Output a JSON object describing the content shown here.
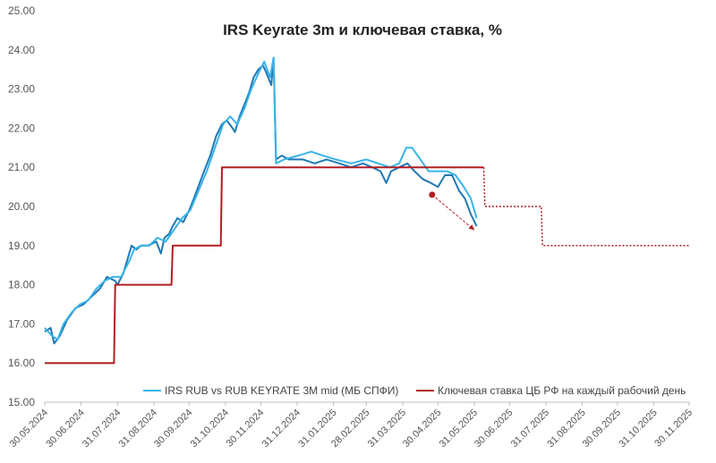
{
  "chart_data": {
    "type": "line",
    "title": "IRS Keyrate 3m и ключевая ставка, %",
    "xlabel": "",
    "ylabel": "",
    "ylim": [
      15.0,
      25.0
    ],
    "yticks": [
      "15.00",
      "16.00",
      "17.00",
      "18.00",
      "19.00",
      "20.00",
      "21.00",
      "22.00",
      "23.00",
      "24.00",
      "25.00"
    ],
    "xticks": [
      "30.05.2024",
      "30.06.2024",
      "31.07.2024",
      "31.08.2024",
      "30.09.2024",
      "31.10.2024",
      "30.11.2024",
      "31.12.2024",
      "31.01.2025",
      "28.02.2025",
      "31.03.2025",
      "30.04.2025",
      "31.05.2025",
      "30.06.2025",
      "31.07.2025",
      "31.08.2025",
      "30.09.2025",
      "31.10.2025",
      "30.11.2025"
    ],
    "xrange": [
      "2024-05-30",
      "2025-11-30"
    ],
    "grid": false,
    "legend_position": "bottom",
    "series": [
      {
        "name": "IRS RUB vs RUB KEYRATE 3M mid (МБ СПФИ)",
        "color": "#1f78b4",
        "points": [
          [
            "2024-05-30",
            16.8
          ],
          [
            "2024-06-04",
            16.9
          ],
          [
            "2024-06-07",
            16.5
          ],
          [
            "2024-06-12",
            16.7
          ],
          [
            "2024-06-18",
            17.1
          ],
          [
            "2024-06-25",
            17.4
          ],
          [
            "2024-07-02",
            17.5
          ],
          [
            "2024-07-09",
            17.7
          ],
          [
            "2024-07-16",
            17.9
          ],
          [
            "2024-07-22",
            18.2
          ],
          [
            "2024-07-29",
            18.1
          ],
          [
            "2024-07-31",
            18.0
          ],
          [
            "2024-08-05",
            18.3
          ],
          [
            "2024-08-09",
            18.7
          ],
          [
            "2024-08-12",
            19.0
          ],
          [
            "2024-08-16",
            18.9
          ],
          [
            "2024-08-20",
            19.0
          ],
          [
            "2024-08-26",
            19.0
          ],
          [
            "2024-09-02",
            19.1
          ],
          [
            "2024-09-06",
            18.8
          ],
          [
            "2024-09-09",
            19.2
          ],
          [
            "2024-09-13",
            19.3
          ],
          [
            "2024-09-16",
            19.5
          ],
          [
            "2024-09-20",
            19.7
          ],
          [
            "2024-09-25",
            19.6
          ],
          [
            "2024-09-30",
            19.9
          ],
          [
            "2024-10-04",
            20.2
          ],
          [
            "2024-10-09",
            20.6
          ],
          [
            "2024-10-14",
            21.0
          ],
          [
            "2024-10-18",
            21.3
          ],
          [
            "2024-10-23",
            21.8
          ],
          [
            "2024-10-28",
            22.1
          ],
          [
            "2024-11-01",
            22.2
          ],
          [
            "2024-11-06",
            22.0
          ],
          [
            "2024-11-08",
            21.9
          ],
          [
            "2024-11-12",
            22.3
          ],
          [
            "2024-11-16",
            22.6
          ],
          [
            "2024-11-20",
            22.9
          ],
          [
            "2024-11-24",
            23.3
          ],
          [
            "2024-11-28",
            23.5
          ],
          [
            "2024-12-02",
            23.6
          ],
          [
            "2024-12-05",
            23.4
          ],
          [
            "2024-12-09",
            23.1
          ],
          [
            "2024-12-11",
            23.8
          ],
          [
            "2024-12-13",
            21.2
          ],
          [
            "2024-12-18",
            21.3
          ],
          [
            "2024-12-24",
            21.2
          ],
          [
            "2025-01-05",
            21.2
          ],
          [
            "2025-01-15",
            21.1
          ],
          [
            "2025-01-25",
            21.2
          ],
          [
            "2025-02-05",
            21.1
          ],
          [
            "2025-02-15",
            21.0
          ],
          [
            "2025-02-25",
            21.1
          ],
          [
            "2025-03-05",
            21.0
          ],
          [
            "2025-03-12",
            20.9
          ],
          [
            "2025-03-17",
            20.6
          ],
          [
            "2025-03-21",
            20.9
          ],
          [
            "2025-03-28",
            21.0
          ],
          [
            "2025-04-04",
            21.1
          ],
          [
            "2025-04-10",
            20.9
          ],
          [
            "2025-04-17",
            20.7
          ],
          [
            "2025-04-24",
            20.6
          ],
          [
            "2025-04-30",
            20.5
          ],
          [
            "2025-05-06",
            20.8
          ],
          [
            "2025-05-12",
            20.8
          ],
          [
            "2025-05-18",
            20.4
          ],
          [
            "2025-05-23",
            20.2
          ],
          [
            "2025-05-28",
            19.8
          ],
          [
            "2025-06-02",
            19.5
          ]
        ]
      },
      {
        "name": "",
        "color": "#38b4e6",
        "points": [
          [
            "2024-05-30",
            16.9
          ],
          [
            "2024-06-05",
            16.7
          ],
          [
            "2024-06-10",
            16.6
          ],
          [
            "2024-06-15",
            17.0
          ],
          [
            "2024-06-22",
            17.3
          ],
          [
            "2024-06-29",
            17.5
          ],
          [
            "2024-07-06",
            17.6
          ],
          [
            "2024-07-13",
            17.9
          ],
          [
            "2024-07-20",
            18.1
          ],
          [
            "2024-07-27",
            18.2
          ],
          [
            "2024-08-03",
            18.2
          ],
          [
            "2024-08-10",
            18.6
          ],
          [
            "2024-08-14",
            18.9
          ],
          [
            "2024-08-20",
            19.0
          ],
          [
            "2024-08-27",
            19.0
          ],
          [
            "2024-09-03",
            19.2
          ],
          [
            "2024-09-10",
            19.1
          ],
          [
            "2024-09-17",
            19.4
          ],
          [
            "2024-09-24",
            19.7
          ],
          [
            "2024-10-01",
            19.9
          ],
          [
            "2024-10-08",
            20.4
          ],
          [
            "2024-10-15",
            20.9
          ],
          [
            "2024-10-22",
            21.5
          ],
          [
            "2024-10-29",
            22.1
          ],
          [
            "2024-11-04",
            22.3
          ],
          [
            "2024-11-10",
            22.1
          ],
          [
            "2024-11-16",
            22.5
          ],
          [
            "2024-11-22",
            23.0
          ],
          [
            "2024-11-28",
            23.4
          ],
          [
            "2024-12-03",
            23.7
          ],
          [
            "2024-12-08",
            23.3
          ],
          [
            "2024-12-11",
            23.8
          ],
          [
            "2024-12-13",
            21.1
          ],
          [
            "2024-12-20",
            21.2
          ],
          [
            "2025-01-01",
            21.3
          ],
          [
            "2025-01-12",
            21.4
          ],
          [
            "2025-01-22",
            21.3
          ],
          [
            "2025-02-02",
            21.2
          ],
          [
            "2025-02-15",
            21.1
          ],
          [
            "2025-02-28",
            21.2
          ],
          [
            "2025-03-10",
            21.1
          ],
          [
            "2025-03-20",
            21.0
          ],
          [
            "2025-03-28",
            21.1
          ],
          [
            "2025-04-03",
            21.5
          ],
          [
            "2025-04-08",
            21.5
          ],
          [
            "2025-04-15",
            21.2
          ],
          [
            "2025-04-22",
            20.9
          ],
          [
            "2025-04-30",
            20.9
          ],
          [
            "2025-05-08",
            20.9
          ],
          [
            "2025-05-15",
            20.8
          ],
          [
            "2025-05-22",
            20.5
          ],
          [
            "2025-05-28",
            20.2
          ],
          [
            "2025-06-02",
            19.7
          ]
        ]
      },
      {
        "name": "Ключевая ставка ЦБ РФ на каждый рабочий день",
        "color": "#b11e24",
        "points": [
          [
            "2024-05-30",
            16.0
          ],
          [
            "2024-07-28",
            16.0
          ],
          [
            "2024-07-29",
            18.0
          ],
          [
            "2024-09-15",
            18.0
          ],
          [
            "2024-09-16",
            19.0
          ],
          [
            "2024-10-27",
            19.0
          ],
          [
            "2024-10-28",
            21.0
          ],
          [
            "2025-06-08",
            21.0
          ]
        ]
      },
      {
        "name": "",
        "color": "#b11e24",
        "dashed": true,
        "points": [
          [
            "2025-06-08",
            21.0
          ],
          [
            "2025-06-09",
            20.0
          ],
          [
            "2025-07-27",
            20.0
          ],
          [
            "2025-07-28",
            19.0
          ],
          [
            "2025-11-30",
            19.0
          ]
        ]
      }
    ],
    "annotation": {
      "type": "arrow",
      "start": [
        "2025-04-25",
        20.3
      ],
      "end": [
        "2025-05-31",
        19.4
      ],
      "color": "#b11e24"
    }
  }
}
